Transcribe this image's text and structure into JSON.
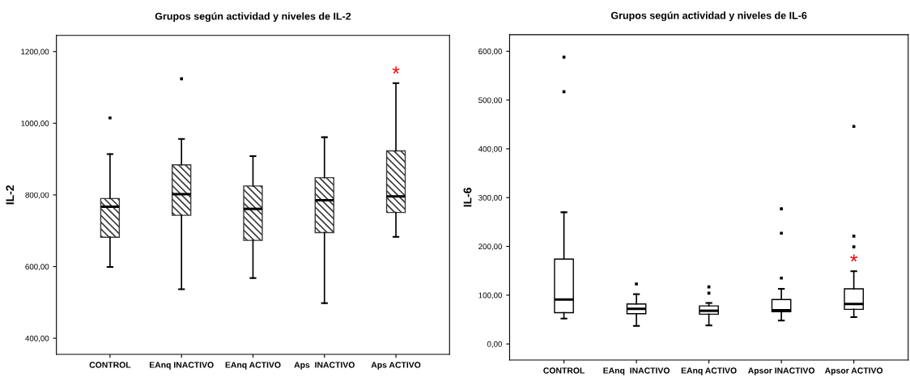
{
  "chart_data": [
    {
      "type": "box",
      "title": "Grupos según actividad y niveles de IL-2",
      "ylabel": "IL-2",
      "categories": [
        "CONTROL",
        "EAnq INACTIVO",
        "EAnq ACTIVO",
        "Aps  INACTIVO",
        "Aps ACTIVO"
      ],
      "series": [
        {
          "color": "#3a3a3a",
          "boxes": [
            {
              "low": 599,
              "q1": 682,
              "median": 767,
              "q3": 790,
              "high": 914,
              "outliers": [
                1015
              ]
            },
            {
              "low": 537,
              "q1": 743,
              "median": 802,
              "q3": 884,
              "high": 956,
              "outliers": [
                1124
              ]
            },
            {
              "low": 568,
              "q1": 673,
              "median": 761,
              "q3": 825,
              "high": 908
            },
            {
              "low": 498,
              "q1": 695,
              "median": 785,
              "q3": 848,
              "high": 961
            },
            {
              "low": 683,
              "q1": 751,
              "median": 796,
              "q3": 923,
              "high": 1112
            }
          ]
        }
      ],
      "ylim": [
        355,
        1245
      ],
      "yticks": [
        {
          "value": 400,
          "label": "400,00"
        },
        {
          "value": 600,
          "label": "600,00"
        },
        {
          "value": 800,
          "label": "800,00"
        },
        {
          "value": 1000,
          "label": "1000,00"
        },
        {
          "value": 1200,
          "label": "1200,00"
        }
      ],
      "annotations": [
        "*"
      ],
      "grid": false,
      "legend": false
    },
    {
      "type": "box",
      "title": "Grupos según actividad y niveles de IL-6",
      "ylabel": "IL-6",
      "categories": [
        "CONTROL",
        "EAnq  INACTIVO",
        "EAnq ACTIVO",
        "Apsor INACTIVO",
        "Apsor ACTIVO"
      ],
      "series": [
        {
          "color": "#ffffff",
          "boxes": [
            {
              "low": 52,
              "q1": 64,
              "median": 91,
              "q3": 174,
              "high": 270,
              "outliers": [
                517,
                588
              ]
            },
            {
              "low": 37,
              "q1": 62,
              "median": 72,
              "q3": 82,
              "high": 102,
              "outliers": [
                123
              ]
            },
            {
              "low": 38,
              "q1": 61,
              "median": 68,
              "q3": 78,
              "high": 84,
              "outliers": [
                104,
                117
              ]
            },
            {
              "low": 48,
              "q1": 66,
              "median": 69,
              "q3": 91,
              "high": 113,
              "outliers": [
                135,
                227,
                277
              ]
            },
            {
              "low": 55,
              "q1": 71,
              "median": 82,
              "q3": 113,
              "high": 149,
              "outliers": [
                199,
                221,
                446
              ]
            }
          ]
        }
      ],
      "ylim": [
        -33,
        634
      ],
      "yticks": [
        {
          "value": 0,
          "label": "0,00"
        },
        {
          "value": 100,
          "label": "100,00"
        },
        {
          "value": 200,
          "label": "200,00"
        },
        {
          "value": 300,
          "label": "300,00"
        },
        {
          "value": 400,
          "label": "400,00"
        },
        {
          "value": 500,
          "label": "500,00"
        },
        {
          "value": 600,
          "label": "600,00"
        }
      ],
      "annotations": [
        "*"
      ],
      "grid": false,
      "legend": false
    }
  ]
}
